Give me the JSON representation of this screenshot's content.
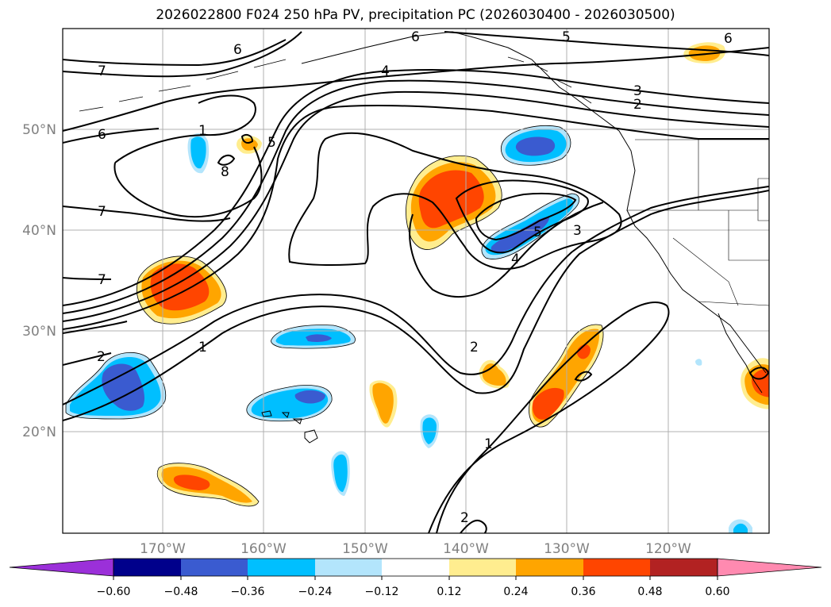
{
  "title": "2026022800 F024 250 hPa PV, precipitation PC (2026030400 - 2026030500)",
  "map": {
    "lon_ticks": [
      "170°W",
      "160°W",
      "150°W",
      "140°W",
      "130°W",
      "120°W"
    ],
    "lat_ticks": [
      "20°N",
      "30°N",
      "40°N",
      "50°N"
    ],
    "contour_labels": [
      "7",
      "6",
      "6",
      "5",
      "6",
      "4",
      "3",
      "2",
      "1",
      "8",
      "5",
      "6",
      "7",
      "7",
      "5",
      "3",
      "4",
      "2",
      "2",
      "1",
      "1",
      "2"
    ],
    "colors": {
      "pos": [
        "#ffed8f",
        "#ffa500",
        "#ff4500",
        "#b22222",
        "#ff8ab0"
      ],
      "neg": [
        "#b3e5fc",
        "#00bfff",
        "#3a5bd0",
        "#00008b",
        "#9b30d9"
      ]
    }
  },
  "colorbar": {
    "ticks": [
      "−0.60",
      "−0.48",
      "−0.36",
      "−0.24",
      "−0.12",
      "0.12",
      "0.24",
      "0.36",
      "0.48",
      "0.60"
    ],
    "bins": [
      "#9b30d9",
      "#00008b",
      "#3a5bd0",
      "#00bfff",
      "#b3e5fc",
      "#ffffff",
      "#ffed8f",
      "#ffa500",
      "#ff4500",
      "#b22222",
      "#ff8ab0"
    ]
  }
}
